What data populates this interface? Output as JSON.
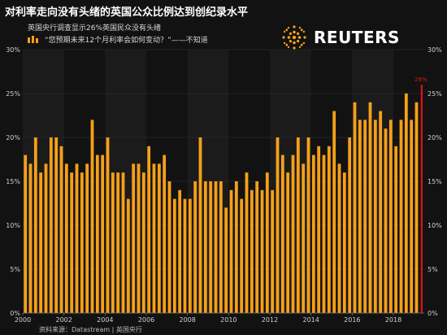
{
  "title": "对利率走向没有头绪的英国公众比例达到创纪录水平",
  "subtitle": "英国央行调查显示26%英国民众没有头绪",
  "legend_label": "“您预期未来12个月利率会如何变动？”——不知道",
  "logo_text": "REUTERS",
  "source": "资料来源：Datastream | 英国央行",
  "colors": {
    "background": "#121212",
    "bar": "#f5a01a",
    "highlight": "#e01414",
    "grid": "#333333"
  },
  "chart_data": {
    "type": "bar",
    "x_start": 2000.0,
    "x_step": 0.25,
    "xlim": [
      2000,
      2019.5
    ],
    "ylim": [
      0,
      30
    ],
    "y_ticks": [
      0,
      5,
      10,
      15,
      20,
      25,
      30
    ],
    "y_tick_labels": [
      "0%",
      "5%",
      "10%",
      "15%",
      "20%",
      "25%",
      "30%"
    ],
    "x_ticks": [
      2000,
      2002,
      2004,
      2006,
      2008,
      2010,
      2012,
      2014,
      2016,
      2018
    ],
    "x_tick_labels": [
      "2000",
      "2002",
      "2004",
      "2006",
      "2008",
      "2010",
      "2012",
      "2014",
      "2016",
      "2018"
    ],
    "values": [
      18,
      17,
      20,
      16,
      17,
      20,
      20,
      19,
      17,
      16,
      17,
      16,
      17,
      22,
      18,
      18,
      20,
      16,
      16,
      16,
      13,
      17,
      17,
      16,
      19,
      17,
      17,
      18,
      15,
      13,
      14,
      13,
      13,
      15,
      20,
      15,
      15,
      15,
      15,
      12,
      14,
      15,
      13,
      16,
      14,
      15,
      14,
      16,
      14,
      20,
      18,
      16,
      18,
      20,
      17,
      20,
      18,
      19,
      18,
      19,
      23,
      17,
      16,
      20,
      24,
      22,
      22,
      24,
      22,
      23,
      21,
      22,
      19,
      22,
      25,
      22,
      24
    ],
    "highlight": {
      "x": 2019.25,
      "value": 26,
      "label": "26%"
    },
    "grid": true
  }
}
